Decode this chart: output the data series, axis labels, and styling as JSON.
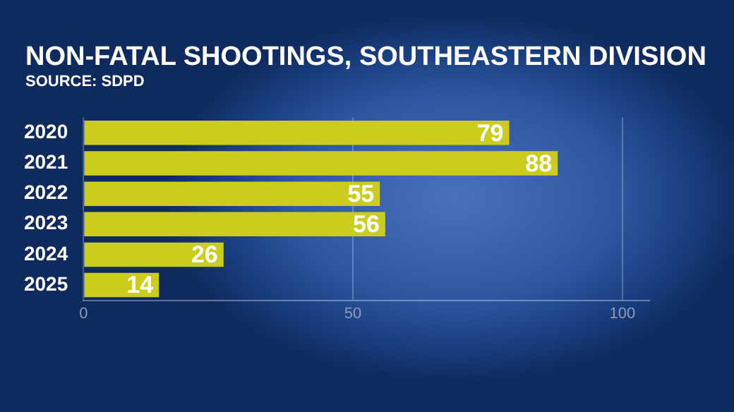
{
  "chart_data": {
    "type": "bar",
    "orientation": "horizontal",
    "title": "NON-FATAL SHOOTINGS, SOUTHEASTERN DIVISION",
    "subtitle": "SOURCE: SDPD",
    "categories": [
      "2020",
      "2021",
      "2022",
      "2023",
      "2024",
      "2025"
    ],
    "values": [
      79,
      88,
      55,
      56,
      26,
      14
    ],
    "color": "#cccc1e",
    "xlim": [
      0,
      105
    ],
    "xticks": [
      0,
      50,
      100
    ],
    "grid": "x",
    "data_labels": true,
    "legend": false
  }
}
